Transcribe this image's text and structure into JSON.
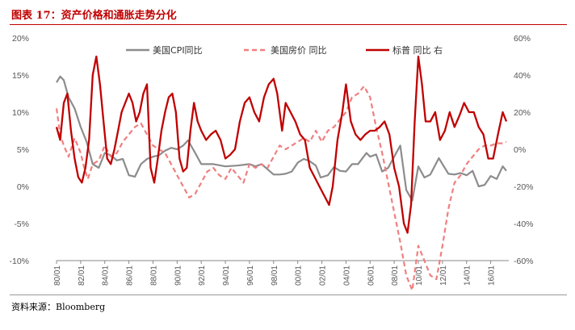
{
  "header": {
    "title": "图表 17：资产价格和通胀走势分化"
  },
  "footer": {
    "source": "资料来源：Bloomberg"
  },
  "colors": {
    "cpi": "#8c8c8c",
    "house": "#f07f7f",
    "sp": "#c00000",
    "title": "#c00000"
  },
  "chart_data": {
    "type": "line",
    "title": "",
    "xlabel": "",
    "ylabel_left": "",
    "ylabel_right": "",
    "x_ticks": [
      "80/01",
      "82/01",
      "84/01",
      "86/01",
      "88/01",
      "90/01",
      "92/01",
      "94/01",
      "96/01",
      "98/01",
      "00/01",
      "02/01",
      "04/01",
      "06/01",
      "08/01",
      "10/01",
      "12/01",
      "14/01",
      "16/01"
    ],
    "x_range": [
      1980.0,
      2017.5
    ],
    "y_left_ticks": [
      "20%",
      "15%",
      "10%",
      "5%",
      "0%",
      "-5%",
      "-10%"
    ],
    "y_left_range": [
      -10,
      20
    ],
    "y_right_ticks": [
      "60%",
      "40%",
      "20%",
      "0%",
      "-20%",
      "-40%",
      "-60%"
    ],
    "y_right_range": [
      -60,
      60
    ],
    "legend": {
      "position": "top",
      "items": [
        "美国CPI同比",
        "美国房价 同比",
        "标普 同比 右"
      ]
    },
    "series": [
      {
        "name": "美国CPI同比",
        "axis": "left",
        "style": "solid",
        "x": [
          1980.0,
          1980.3,
          1980.6,
          1981.0,
          1981.5,
          1982.0,
          1982.5,
          1983.0,
          1983.5,
          1984.0,
          1984.5,
          1985.0,
          1985.5,
          1986.0,
          1986.5,
          1987.0,
          1987.5,
          1988.0,
          1988.5,
          1989.0,
          1989.5,
          1990.0,
          1990.5,
          1990.9,
          1991.5,
          1992.0,
          1993.0,
          1994.0,
          1995.0,
          1996.0,
          1996.5,
          1997.0,
          1997.5,
          1998.0,
          1998.5,
          1999.0,
          1999.5,
          2000.0,
          2000.5,
          2001.0,
          2001.5,
          2001.9,
          2002.5,
          2003.0,
          2003.5,
          2004.0,
          2004.5,
          2005.0,
          2005.7,
          2006.0,
          2006.5,
          2007.0,
          2007.5,
          2008.0,
          2008.5,
          2009.0,
          2009.5,
          2010.0,
          2010.5,
          2011.0,
          2011.7,
          2012.0,
          2012.5,
          2013.0,
          2013.5,
          2014.0,
          2014.5,
          2015.0,
          2015.5,
          2016.0,
          2016.5,
          2017.0,
          2017.3
        ],
        "values": [
          14.0,
          14.8,
          14.3,
          12.0,
          10.5,
          8.0,
          6.0,
          3.0,
          2.5,
          4.5,
          4.2,
          3.5,
          3.7,
          1.5,
          1.3,
          3.0,
          3.7,
          4.0,
          4.2,
          4.8,
          5.2,
          5.0,
          5.5,
          6.2,
          4.5,
          3.0,
          3.0,
          2.7,
          2.8,
          3.0,
          2.7,
          3.0,
          2.3,
          1.6,
          1.6,
          1.7,
          2.0,
          3.2,
          3.7,
          3.4,
          2.8,
          1.2,
          1.5,
          2.6,
          2.1,
          2.0,
          3.0,
          3.0,
          4.5,
          4.0,
          4.3,
          2.0,
          2.5,
          4.0,
          5.5,
          -0.5,
          -1.9,
          2.7,
          1.2,
          1.6,
          3.8,
          3.0,
          1.7,
          1.6,
          1.8,
          1.5,
          2.1,
          0.0,
          0.2,
          1.4,
          1.0,
          2.7,
          2.1
        ]
      },
      {
        "name": "美国房价 同比",
        "axis": "left",
        "style": "dashed",
        "x": [
          1980.0,
          1980.3,
          1980.6,
          1981.0,
          1981.5,
          1982.0,
          1982.3,
          1982.6,
          1983.0,
          1983.5,
          1984.0,
          1984.5,
          1985.0,
          1985.5,
          1986.0,
          1986.5,
          1987.0,
          1987.5,
          1988.0,
          1988.5,
          1989.0,
          1989.5,
          1990.0,
          1990.5,
          1991.0,
          1991.5,
          1992.0,
          1992.5,
          1993.0,
          1993.5,
          1994.0,
          1994.5,
          1995.0,
          1995.5,
          1996.0,
          1996.5,
          1997.0,
          1997.5,
          1998.0,
          1998.5,
          1999.0,
          1999.5,
          2000.0,
          2000.5,
          2001.0,
          2001.5,
          2002.0,
          2002.5,
          2003.0,
          2003.5,
          2004.0,
          2004.5,
          2005.0,
          2005.5,
          2006.0,
          2006.5,
          2007.0,
          2007.5,
          2008.0,
          2008.5,
          2009.0,
          2009.5,
          2010.0,
          2010.5,
          2011.0,
          2011.5,
          2012.0,
          2012.5,
          2013.0,
          2013.5,
          2014.0,
          2014.5,
          2015.0,
          2015.5,
          2016.0,
          2016.5,
          2017.0,
          2017.3
        ],
        "values": [
          10.5,
          7.0,
          5.5,
          4.0,
          6.5,
          4.5,
          2.5,
          1.0,
          3.0,
          3.5,
          5.5,
          4.0,
          4.5,
          6.0,
          7.0,
          8.0,
          8.5,
          7.0,
          5.5,
          5.0,
          4.5,
          3.0,
          1.5,
          0.0,
          -1.5,
          -1.0,
          0.5,
          2.0,
          2.5,
          1.5,
          1.0,
          2.5,
          1.5,
          0.5,
          3.0,
          2.5,
          3.0,
          2.5,
          4.0,
          5.5,
          5.0,
          5.5,
          6.0,
          6.5,
          6.0,
          7.5,
          6.0,
          7.5,
          8.0,
          9.0,
          10.0,
          12.0,
          12.5,
          13.5,
          12.0,
          8.0,
          4.5,
          0.5,
          -3.5,
          -7.5,
          -12.0,
          -14.0,
          -8.0,
          -10.0,
          -12.0,
          -12.5,
          -8.0,
          -3.0,
          0.5,
          1.5,
          3.0,
          4.0,
          5.0,
          5.5,
          5.5,
          5.8,
          5.8,
          6.0
        ]
      },
      {
        "name": "标普 同比 右",
        "axis": "right",
        "style": "solid",
        "x": [
          1980.0,
          1980.3,
          1980.6,
          1980.9,
          1981.2,
          1981.5,
          1981.8,
          1982.1,
          1982.4,
          1982.7,
          1983.0,
          1983.3,
          1983.6,
          1983.9,
          1984.2,
          1984.5,
          1984.8,
          1985.1,
          1985.4,
          1985.7,
          1986.0,
          1986.3,
          1986.6,
          1986.9,
          1987.2,
          1987.5,
          1987.8,
          1988.1,
          1988.4,
          1988.7,
          1989.0,
          1989.3,
          1989.6,
          1989.9,
          1990.2,
          1990.5,
          1990.8,
          1991.1,
          1991.4,
          1991.7,
          1992.0,
          1992.4,
          1992.8,
          1993.2,
          1993.6,
          1994.0,
          1994.4,
          1994.8,
          1995.2,
          1995.6,
          1996.0,
          1996.4,
          1996.8,
          1997.2,
          1997.6,
          1998.0,
          1998.3,
          1998.7,
          1999.0,
          1999.4,
          1999.8,
          2000.2,
          2000.6,
          2001.0,
          2001.4,
          2001.8,
          2002.2,
          2002.6,
          2002.9,
          2003.3,
          2003.7,
          2004.0,
          2004.4,
          2004.8,
          2005.2,
          2005.6,
          2006.0,
          2006.4,
          2006.8,
          2007.2,
          2007.6,
          2008.0,
          2008.4,
          2008.8,
          2009.1,
          2009.4,
          2009.7,
          2010.0,
          2010.3,
          2010.6,
          2011.0,
          2011.4,
          2011.8,
          2012.2,
          2012.6,
          2013.0,
          2013.4,
          2013.8,
          2014.2,
          2014.6,
          2015.0,
          2015.4,
          2015.8,
          2016.2,
          2016.6,
          2017.0,
          2017.3
        ],
        "values": [
          12.0,
          5.0,
          25.0,
          30.0,
          10.0,
          -5.0,
          -15.0,
          -18.0,
          -10.0,
          5.0,
          40.0,
          50.0,
          35.0,
          15.0,
          -5.0,
          -8.0,
          0.0,
          10.0,
          20.0,
          25.0,
          30.0,
          25.0,
          15.0,
          20.0,
          30.0,
          35.0,
          -10.0,
          -18.0,
          -5.0,
          10.0,
          20.0,
          28.0,
          30.0,
          20.0,
          -5.0,
          -12.0,
          -10.0,
          10.0,
          25.0,
          15.0,
          10.0,
          5.0,
          8.0,
          10.0,
          5.0,
          -5.0,
          -3.0,
          0.0,
          15.0,
          25.0,
          28.0,
          20.0,
          15.0,
          28.0,
          35.0,
          38.0,
          30.0,
          10.0,
          25.0,
          20.0,
          15.0,
          8.0,
          5.0,
          -10.0,
          -15.0,
          -20.0,
          -25.0,
          -30.0,
          -20.0,
          5.0,
          20.0,
          35.0,
          15.0,
          8.0,
          5.0,
          8.0,
          10.0,
          10.0,
          12.0,
          15.0,
          8.0,
          -10.0,
          -20.0,
          -40.0,
          -45.0,
          -30.0,
          15.0,
          50.0,
          35.0,
          15.0,
          15.0,
          20.0,
          5.0,
          10.0,
          20.0,
          12.0,
          18.0,
          25.0,
          20.0,
          20.0,
          12.0,
          8.0,
          -5.0,
          -5.0,
          8.0,
          20.0,
          15.0
        ]
      }
    ]
  }
}
